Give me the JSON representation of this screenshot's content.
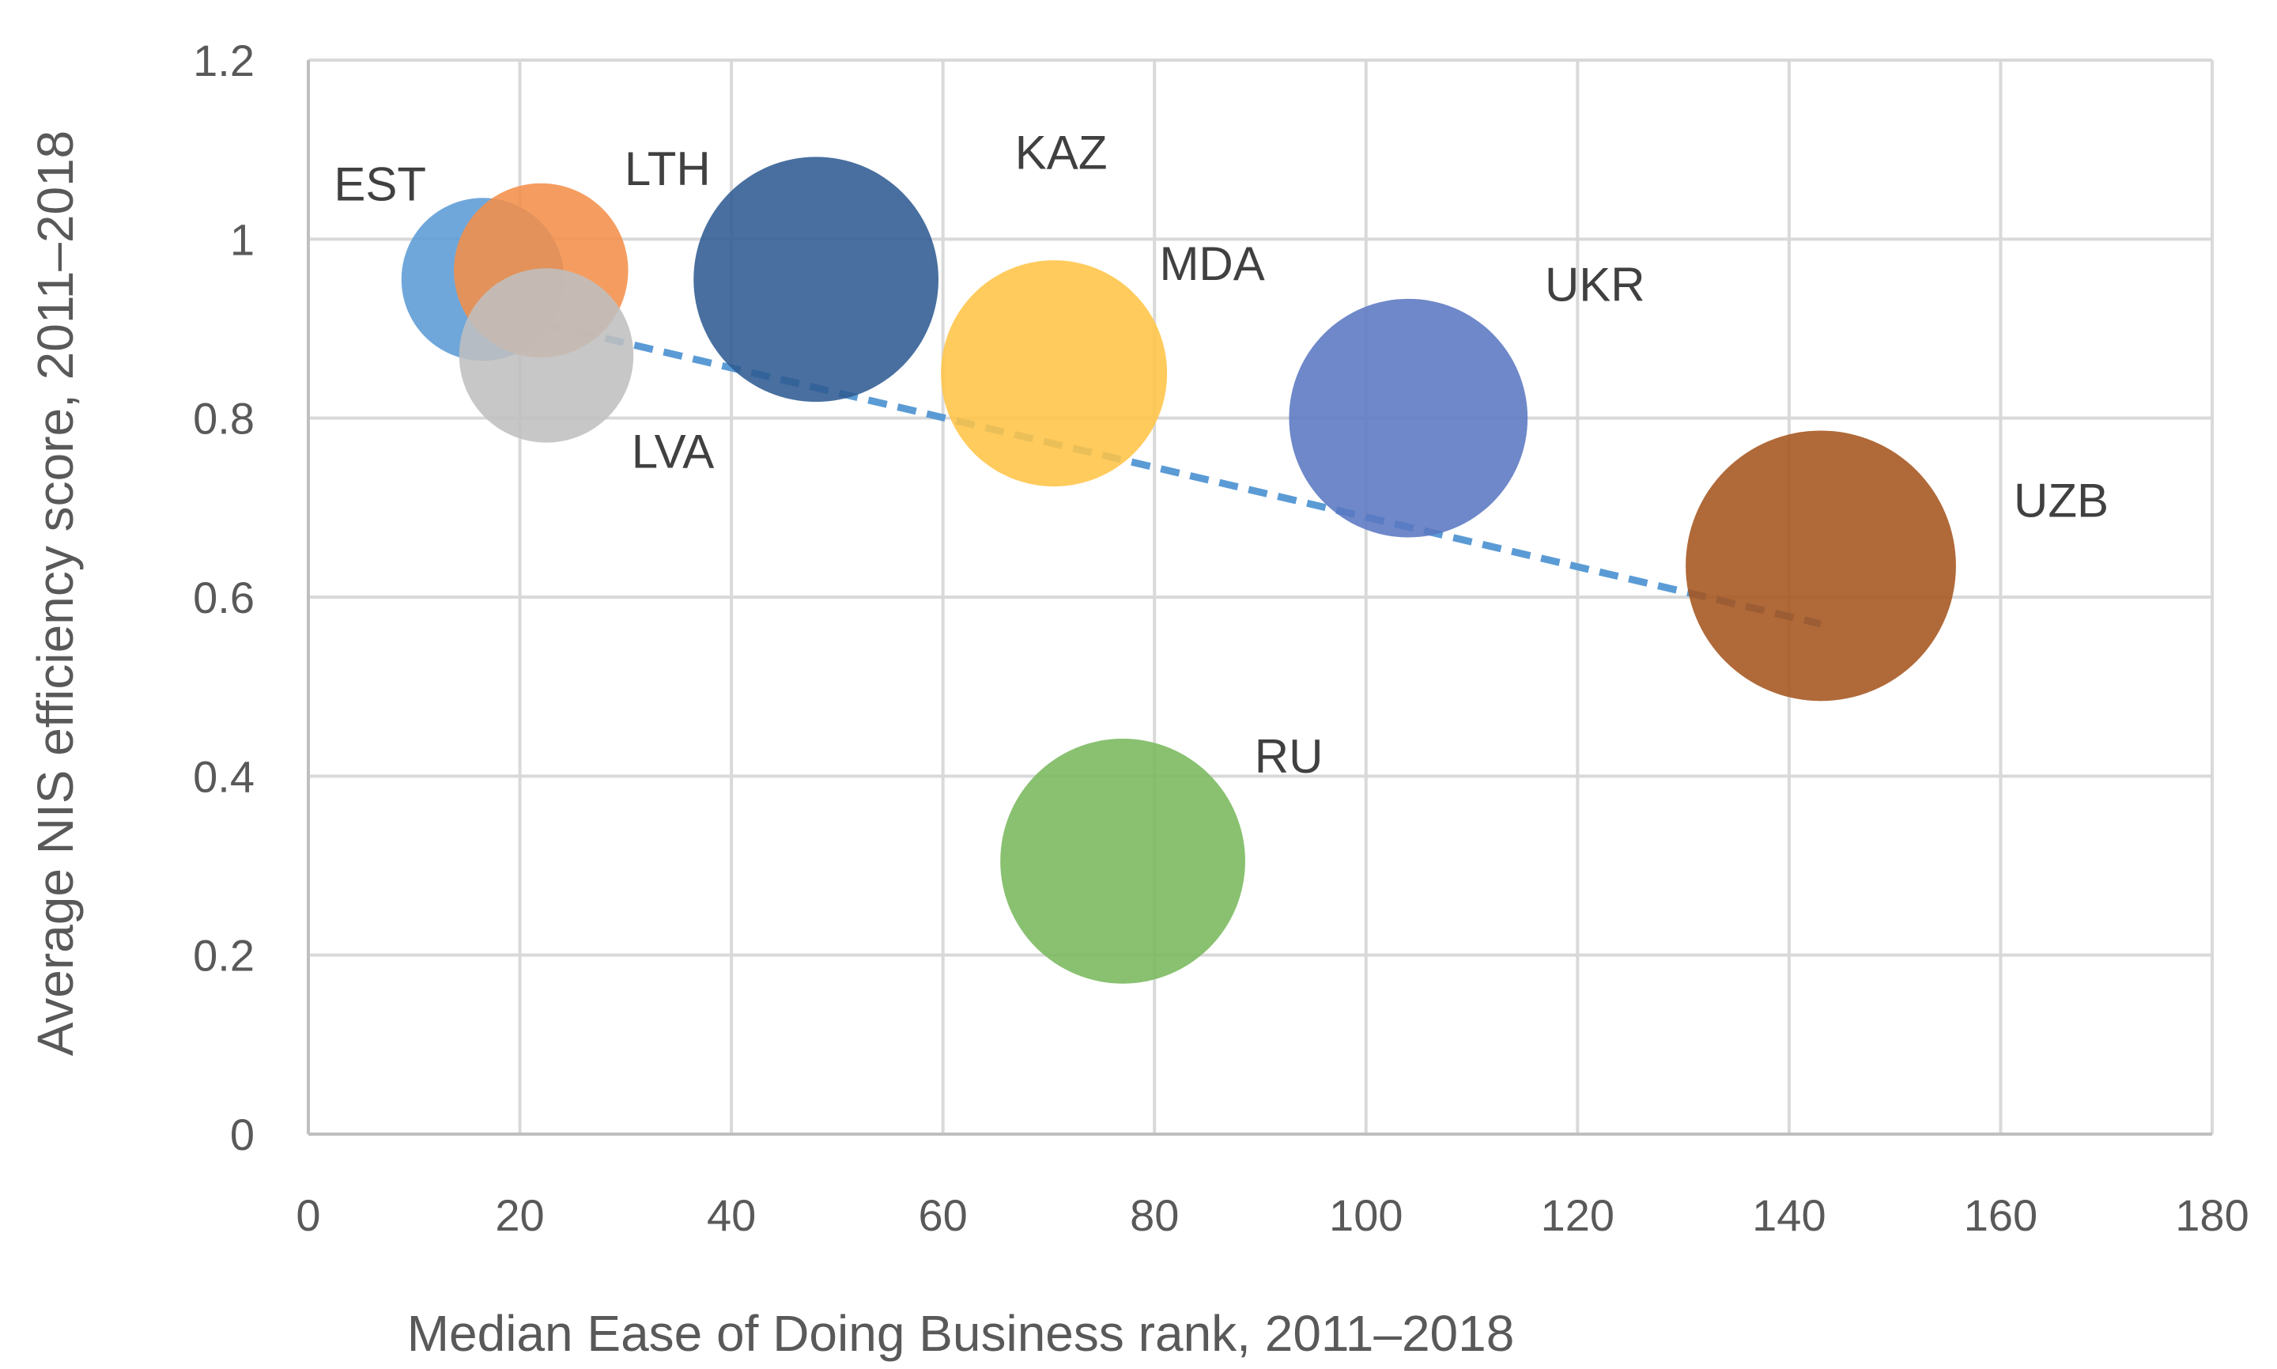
{
  "chart_data": {
    "type": "bubble",
    "title": "",
    "xlabel": "Median Ease of Doing Business rank, 2011–2018",
    "ylabel": "Average NIS efficiency score, 2011–2018",
    "xlim": [
      0,
      180
    ],
    "ylim": [
      0,
      1.2
    ],
    "xticks": [
      0,
      20,
      40,
      60,
      80,
      100,
      120,
      140,
      160,
      180
    ],
    "yticks": [
      0,
      0.2,
      0.4,
      0.6,
      0.8,
      1,
      1.2
    ],
    "xtick_labels": [
      "0",
      "20",
      "40",
      "60",
      "80",
      "100",
      "120",
      "140",
      "160",
      "180"
    ],
    "ytick_labels": [
      "0",
      "0.2",
      "0.4",
      "0.6",
      "0.8",
      "1",
      "1.2"
    ],
    "grid": true,
    "legend": "none",
    "series": [
      {
        "name": "EST",
        "x": 16.5,
        "y": 0.955,
        "size": 0.69,
        "color": "#5b9bd5"
      },
      {
        "name": "LTH",
        "x": 22,
        "y": 0.965,
        "size": 0.79,
        "color": "#f4904a"
      },
      {
        "name": "LVA",
        "x": 22.5,
        "y": 0.87,
        "size": 0.79,
        "color": "#bfbfbf"
      },
      {
        "name": "KAZ",
        "x": 48,
        "y": 0.955,
        "size": 1.56,
        "color": "#2f5b92"
      },
      {
        "name": "MDA",
        "x": 70.5,
        "y": 0.85,
        "size": 1.33,
        "color": "#ffc447"
      },
      {
        "name": "UKR",
        "x": 104,
        "y": 0.8,
        "size": 1.48,
        "color": "#5a78c1"
      },
      {
        "name": "UZB",
        "x": 143,
        "y": 0.635,
        "size": 1.9,
        "color": "#a5541e"
      },
      {
        "name": "RU",
        "x": 77,
        "y": 0.305,
        "size": 1.56,
        "color": "#79b85c"
      }
    ],
    "trendline": {
      "type": "linear",
      "x": [
        17,
        143
      ],
      "y": [
        0.92,
        0.57
      ],
      "color": "#5b9bd5",
      "style": "dashed"
    }
  }
}
